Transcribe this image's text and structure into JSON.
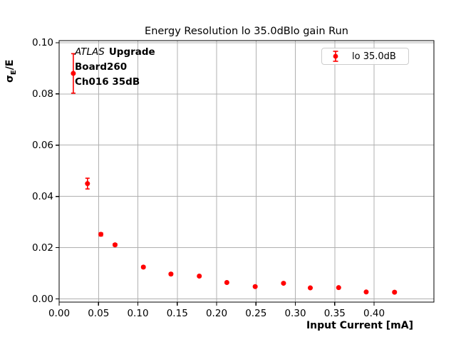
{
  "chart_data": {
    "type": "scatter",
    "title": "Energy Resolution lo 35.0dBlo gain Run",
    "xlabel": "Input Current [mA]",
    "ylabel": "σE/E",
    "ylabel_parts": {
      "sigma": "σ",
      "sub": "E",
      "rest": "/E"
    },
    "legend": {
      "label": "lo 35.0dB",
      "position": "upper right"
    },
    "series": [
      {
        "name": "lo 35.0dB",
        "marker": "circle-with-errorbars",
        "color": "#ff0000",
        "x": [
          0.018,
          0.036,
          0.053,
          0.071,
          0.107,
          0.142,
          0.178,
          0.213,
          0.249,
          0.285,
          0.319,
          0.355,
          0.39,
          0.426
        ],
        "y": [
          0.088,
          0.045,
          0.0252,
          0.0211,
          0.0124,
          0.0097,
          0.0089,
          0.0064,
          0.0048,
          0.0061,
          0.0043,
          0.0044,
          0.0027,
          0.0026
        ],
        "yerr": [
          0.0077,
          0.0021,
          0.0006,
          0.0005,
          0.0004,
          0.0004,
          0.0003,
          0.0003,
          0.0003,
          0.0003,
          0.0003,
          0.0003,
          0.0003,
          0.0003
        ]
      }
    ],
    "xlim": [
      0,
      0.476
    ],
    "ylim": [
      -0.00125,
      0.1008
    ],
    "xticks": [
      0.0,
      0.05,
      0.1,
      0.15,
      0.2,
      0.25,
      0.3,
      0.35,
      0.4
    ],
    "xtick_labels": [
      "0.00",
      "0.05",
      "0.10",
      "0.15",
      "0.20",
      "0.25",
      "0.30",
      "0.35",
      "0.40"
    ],
    "yticks": [
      0.0,
      0.02,
      0.04,
      0.06,
      0.08,
      0.1
    ],
    "ytick_labels": [
      "0.00",
      "0.02",
      "0.04",
      "0.06",
      "0.08",
      "0.10"
    ],
    "grid": true,
    "grid_color": "#b0b0b0",
    "axis_color": "#000000",
    "background_color": "#ffffff"
  },
  "annotation": {
    "atlas": "ATLAS",
    "upgrade": "Upgrade",
    "line2": "Board260",
    "line3": "Ch016 35dB"
  }
}
